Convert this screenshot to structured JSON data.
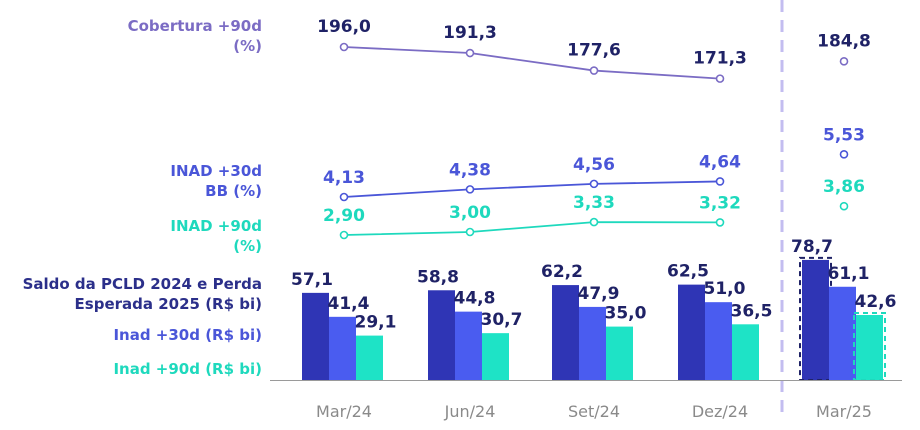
{
  "chart_data": {
    "type": "bar",
    "categories": [
      "Mar/24",
      "Jun/24",
      "Set/24",
      "Dez/24",
      "Mar/25"
    ],
    "row_labels": {
      "cobertura": [
        "Cobertura +90d",
        "(%)"
      ],
      "inad30_bb": [
        "INAD +30d",
        "BB (%)"
      ],
      "inad90": [
        "INAD +90d",
        "(%)"
      ],
      "saldo": [
        "Saldo da PCLD 2024 e Perda",
        "Esperada 2025 (R$ bi)"
      ],
      "inad30_bi": [
        "Inad +30d (R$ bi)"
      ],
      "inad90_bi": [
        "Inad +90d (R$ bi)"
      ]
    },
    "lines": [
      {
        "key": "cobertura",
        "values": [
          196.0,
          191.3,
          177.6,
          171.3,
          184.8
        ],
        "labels": [
          "196,0",
          "191,3",
          "177,6",
          "171,3",
          "184,8"
        ],
        "color": "#7b6cc4"
      },
      {
        "key": "inad30_bb",
        "values": [
          4.13,
          4.38,
          4.56,
          4.64,
          5.53
        ],
        "labels": [
          "4,13",
          "4,38",
          "4,56",
          "4,64",
          "5,53"
        ],
        "color": "#4a56d8"
      },
      {
        "key": "inad90",
        "values": [
          2.9,
          3.0,
          3.33,
          3.32,
          3.86
        ],
        "labels": [
          "2,90",
          "3,00",
          "3,33",
          "3,32",
          "3,86"
        ],
        "color": "#1ed9bd"
      }
    ],
    "bar_series": [
      {
        "key": "saldo",
        "values": [
          57.1,
          58.8,
          62.2,
          62.5,
          78.7
        ],
        "labels": [
          "57,1",
          "58,8",
          "62,2",
          "62,5",
          "78,7"
        ],
        "color": "#2f35b5"
      },
      {
        "key": "inad30_bi",
        "values": [
          41.4,
          44.8,
          47.9,
          51.0,
          61.1
        ],
        "labels": [
          "41,4",
          "44,8",
          "47,9",
          "51,0",
          "61,1"
        ],
        "color": "#4a5cf0"
      },
      {
        "key": "inad90_bi",
        "values": [
          29.1,
          30.7,
          35.0,
          36.5,
          42.6
        ],
        "labels": [
          "29,1",
          "30,7",
          "35,0",
          "36,5",
          "42,6"
        ],
        "color": "#1ee3c6"
      }
    ],
    "highlighted_category": "Mar/25",
    "colors": {
      "label_text": "#2b2f8a",
      "cobertura_label": "#7b6cc4",
      "inad30_label": "#4a56d8",
      "inad90_label": "#1ed9bd",
      "separator": "#c3bdf0",
      "axis": "#9a9a9a",
      "value_text": "#1f2266"
    }
  }
}
